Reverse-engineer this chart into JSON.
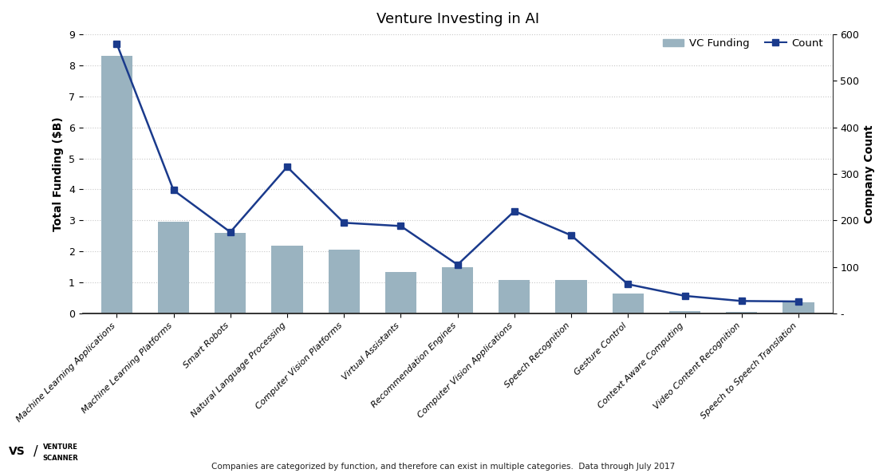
{
  "title": "Venture Investing in AI",
  "categories": [
    "Machine Learning Applications",
    "Machine Learning Platforms",
    "Smart Robots",
    "Natural Language Processing",
    "Computer Vision Platforms",
    "Virtual Assistants",
    "Recommendation Engines",
    "Computer Vision Applications",
    "Speech Recognition",
    "Gesture Control",
    "Context Aware Computing",
    "Video Content Recognition",
    "Speech to Speech Translation"
  ],
  "funding": [
    8.3,
    2.95,
    2.6,
    2.2,
    2.05,
    1.35,
    1.5,
    1.08,
    1.08,
    0.65,
    0.08,
    0.05,
    0.35
  ],
  "count": [
    580,
    265,
    175,
    315,
    195,
    188,
    105,
    220,
    168,
    63,
    38,
    27,
    26
  ],
  "bar_color": "#9ab3c0",
  "line_color": "#1a3a8c",
  "ylabel_left": "Total Funding ($B)",
  "ylabel_right": "Company Count",
  "ylim_left": [
    0,
    9
  ],
  "ylim_right": [
    0,
    600
  ],
  "yticks_left": [
    0,
    1,
    2,
    3,
    4,
    5,
    6,
    7,
    8,
    9
  ],
  "yticks_right": [
    0,
    100,
    200,
    300,
    400,
    500,
    600
  ],
  "ytick_right_labels": [
    "-",
    "100",
    "200",
    "300",
    "400",
    "500",
    "600"
  ],
  "legend_funding": "VC Funding",
  "legend_count": "Count",
  "footer_text": "Companies are categorized by function, and therefore can exist in multiple categories.  Data through July 2017",
  "background_color": "#ffffff",
  "grid_color": "#c8c8c8",
  "title_fontsize": 13,
  "axis_label_fontsize": 10,
  "tick_fontsize": 9,
  "xtick_fontsize": 8
}
